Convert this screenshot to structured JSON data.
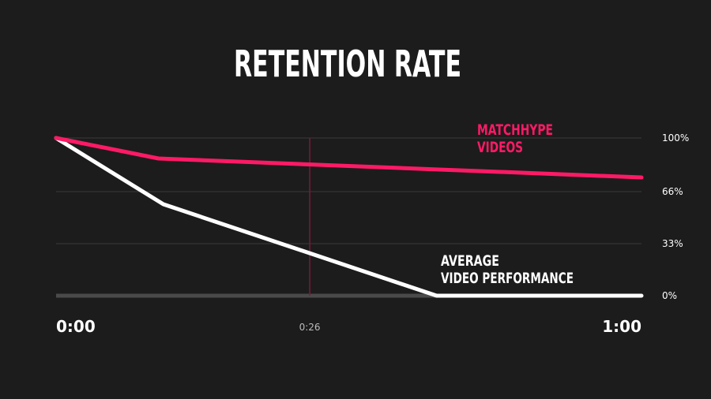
{
  "colors": {
    "background": "#1c1c1d",
    "grid": "#3a3a3b",
    "baseline": "#4a4a4b",
    "marker": "#7a1a3c",
    "matchhype": "#ff1a66",
    "average": "#ffffff",
    "title": "#ffffff",
    "tick_label": "#ffffff",
    "marker_label": "#bbbbbb"
  },
  "chart_data": {
    "type": "line",
    "title": "RETENTION RATE",
    "xlabel": "",
    "ylabel": "",
    "x_unit": "seconds",
    "xlim": [
      0,
      60
    ],
    "ylim": [
      0,
      100
    ],
    "grid": true,
    "x_ticks": [
      {
        "value": 0,
        "label": "0:00",
        "emphasis": true
      },
      {
        "value": 26,
        "label": "0:26",
        "emphasis": false
      },
      {
        "value": 60,
        "label": "1:00",
        "emphasis": true
      }
    ],
    "y_ticks": [
      {
        "value": 100,
        "label": "100%"
      },
      {
        "value": 66,
        "label": "66%"
      },
      {
        "value": 33,
        "label": "33%"
      },
      {
        "value": 0,
        "label": "0%"
      }
    ],
    "marker_line": {
      "x": 26,
      "label": "0:26"
    },
    "series": [
      {
        "name": "MATCHHYPE VIDEOS",
        "label_lines": [
          "MATCHHYPE",
          "VIDEOS"
        ],
        "color_key": "matchhype",
        "points": [
          {
            "x": 0,
            "y": 100
          },
          {
            "x": 10.5,
            "y": 87
          },
          {
            "x": 60,
            "y": 75
          }
        ]
      },
      {
        "name": "AVERAGE VIDEO PERFORMANCE",
        "label_lines": [
          "AVERAGE",
          "VIDEO PERFORMANCE"
        ],
        "color_key": "average",
        "points": [
          {
            "x": 0,
            "y": 100
          },
          {
            "x": 11,
            "y": 58
          },
          {
            "x": 39,
            "y": 0
          },
          {
            "x": 60,
            "y": 0
          }
        ]
      }
    ]
  }
}
